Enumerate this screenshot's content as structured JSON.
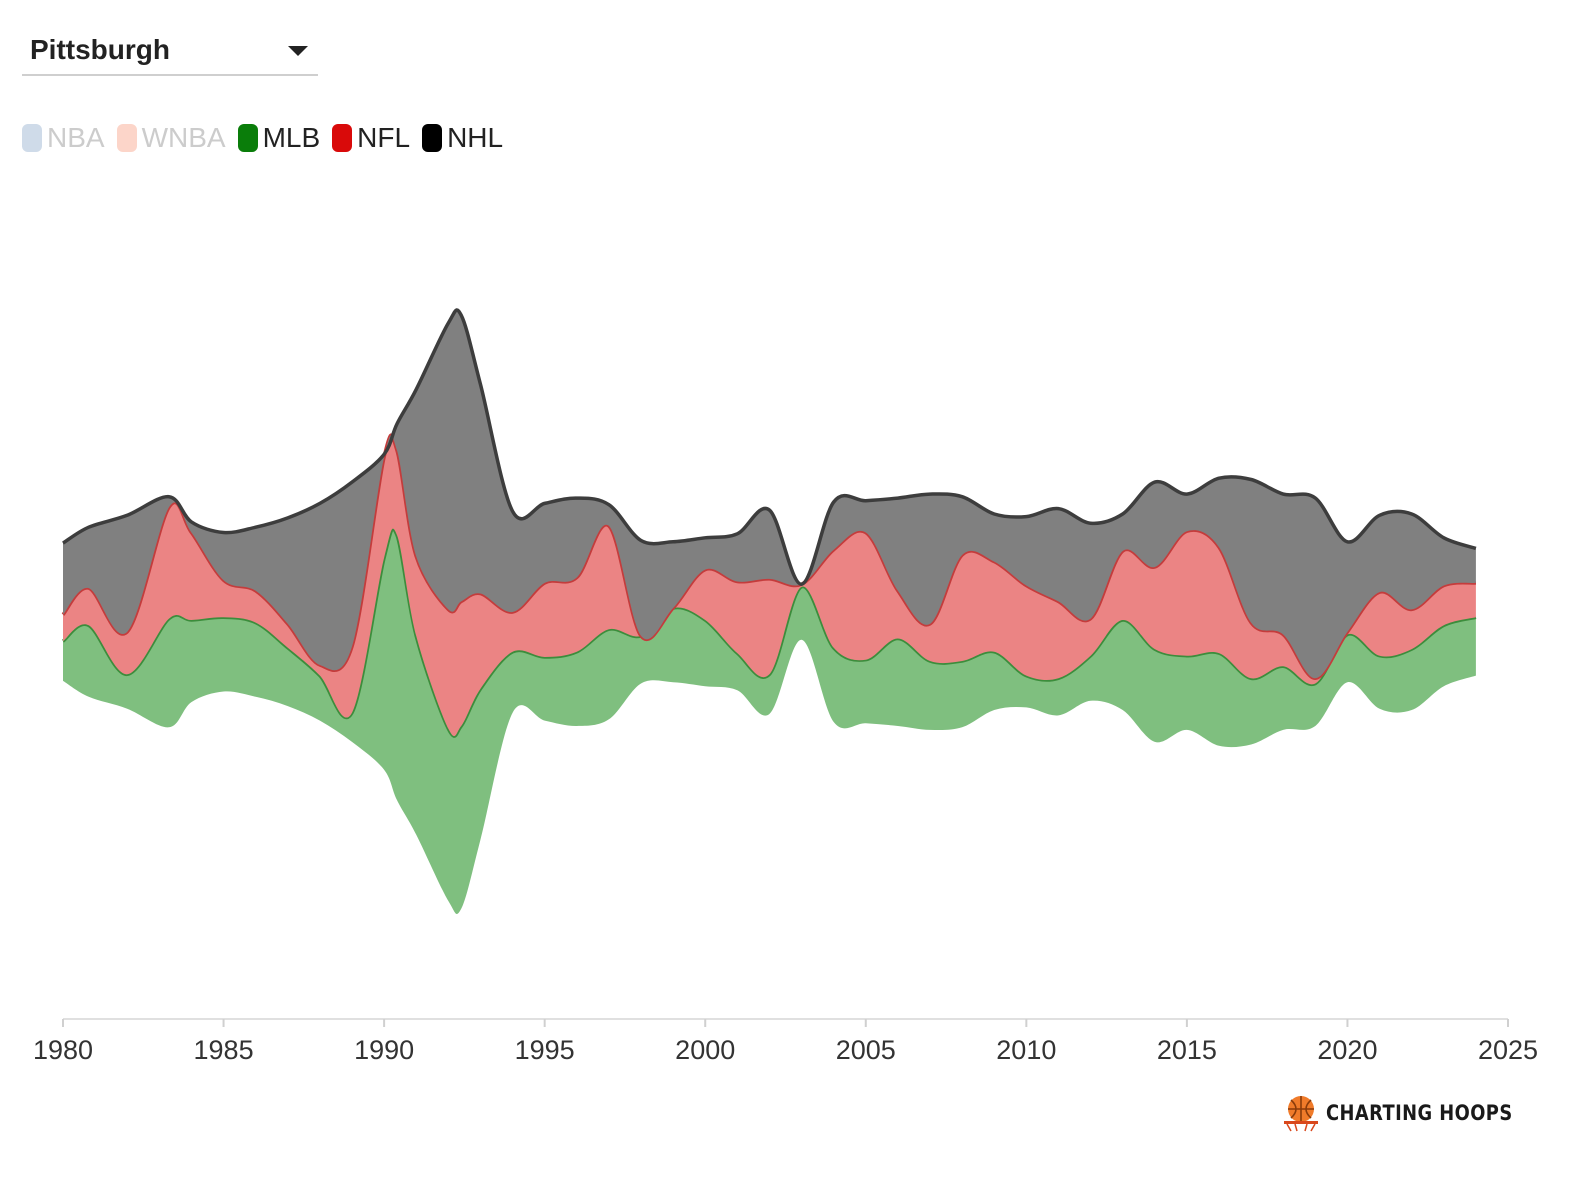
{
  "selector": {
    "value": "Pittsburgh"
  },
  "legend": [
    {
      "label": "NBA",
      "color": "#cfdbe9",
      "active": false
    },
    {
      "label": "WNBA",
      "color": "#fcd5c9",
      "active": false
    },
    {
      "label": "MLB",
      "color": "#0a7d0a",
      "active": true
    },
    {
      "label": "NFL",
      "color": "#d90a0a",
      "active": true
    },
    {
      "label": "NHL",
      "color": "#000000",
      "active": true
    }
  ],
  "brand": {
    "name": "CHARTING HOOPS"
  },
  "chart_data": {
    "type": "area",
    "style": "streamgraph",
    "x_ticks": [
      1980,
      1985,
      1990,
      1995,
      2000,
      2005,
      2010,
      2015,
      2020,
      2025
    ],
    "xlim": [
      1980,
      2025
    ],
    "grid": false,
    "legend_position": "top-left",
    "x": [
      1980,
      1980.8,
      1982,
      1983.3,
      1984,
      1985,
      1986,
      1987,
      1988,
      1989,
      1990,
      1990.4,
      1991,
      1992,
      1992.4,
      1993,
      1994,
      1995,
      1996,
      1997,
      1998,
      1999,
      2000,
      2001,
      2002,
      2003,
      2004,
      2005,
      2006,
      2007,
      2008,
      2009,
      2010,
      2011,
      2012,
      2013,
      2014,
      2015,
      2016,
      2017,
      2018,
      2019,
      2020,
      2021,
      2022,
      2023,
      2024
    ],
    "series": [
      {
        "name": "MLB",
        "color": "#7fbf7f",
        "line": "#3c8d3c",
        "values": [
          1.5,
          2.7,
          1.3,
          4.1,
          3.1,
          2.8,
          2.8,
          2.2,
          1.7,
          1.1,
          8.0,
          10.0,
          7.5,
          6.5,
          6.9,
          5.7,
          2.3,
          2.4,
          2.8,
          3.4,
          1.8,
          2.8,
          2.5,
          1.4,
          1.5,
          2.0,
          2.8,
          2.4,
          3.3,
          2.6,
          2.5,
          2.2,
          1.2,
          1.4,
          1.7,
          3.4,
          3.5,
          2.8,
          3.5,
          2.5,
          2.4,
          1.6,
          1.8,
          2.0,
          2.3,
          2.3,
          2.2
        ]
      },
      {
        "name": "NFL",
        "color": "#eb8484",
        "line": "#c43c3c",
        "values": [
          1.0,
          1.4,
          1.6,
          4.2,
          3.3,
          1.4,
          1.2,
          0.9,
          0.4,
          2.5,
          3.8,
          3.2,
          3.0,
          4.5,
          4.7,
          3.6,
          1.5,
          2.8,
          2.8,
          3.9,
          0.0,
          0.0,
          1.9,
          2.7,
          3.6,
          0.1,
          3.7,
          4.8,
          1.8,
          1.4,
          4.0,
          3.4,
          3.4,
          2.9,
          1.4,
          2.6,
          3.1,
          4.7,
          4.0,
          2.1,
          1.2,
          0.2,
          0.1,
          2.4,
          1.5,
          1.5,
          1.3
        ]
      },
      {
        "name": "NHL",
        "color": "#808080",
        "line": "#3d3d3d",
        "values": [
          2.7,
          2.3,
          4.4,
          0.4,
          0.4,
          1.8,
          2.4,
          4.0,
          6.1,
          6.2,
          0.1,
          1.0,
          6.3,
          10.8,
          10.8,
          7.9,
          3.8,
          3.0,
          3.0,
          0.8,
          3.6,
          2.5,
          1.2,
          1.8,
          2.6,
          0.0,
          1.8,
          1.2,
          3.5,
          4.9,
          2.2,
          1.8,
          2.6,
          3.5,
          3.6,
          1.4,
          3.2,
          1.4,
          2.6,
          5.4,
          5.3,
          6.8,
          3.4,
          2.9,
          3.6,
          1.8,
          1.3
        ]
      }
    ]
  }
}
